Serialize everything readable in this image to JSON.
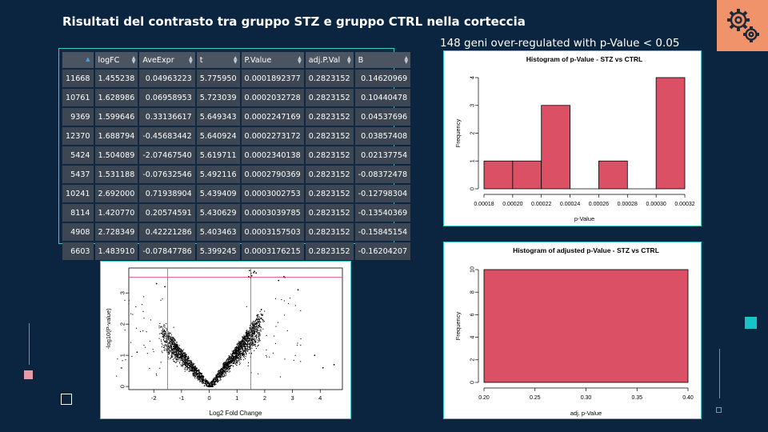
{
  "slide": {
    "title": "Risultati del contrasto tra gruppo STZ e gruppo CTRL nella corteccia",
    "subtitle": "148 geni over-regulated with p-Value < 0.05",
    "icon": "gears-icon",
    "accent_colors": {
      "background": "#0b2540",
      "teal": "#18c4c8",
      "pink": "#e89aa8",
      "orange": "#f0926a",
      "bar": "#dc5065"
    }
  },
  "table": {
    "columns": [
      "",
      "logFC",
      "AveExpr",
      "t",
      "P.Value",
      "adj.P.Val",
      "B"
    ],
    "rows": [
      [
        "11668",
        "1.455238",
        "0.04963223",
        "5.775950",
        "0.0001892377",
        "0.2823152",
        "0.14620969"
      ],
      [
        "10761",
        "1.628986",
        "0.06958953",
        "5.723039",
        "0.0002032728",
        "0.2823152",
        "0.10440478"
      ],
      [
        "9369",
        "1.599646",
        "0.33136617",
        "5.649343",
        "0.0002247169",
        "0.2823152",
        "0.04537696"
      ],
      [
        "12370",
        "1.688794",
        "-0.45683442",
        "5.640924",
        "0.0002273172",
        "0.2823152",
        "0.03857408"
      ],
      [
        "5424",
        "1.504089",
        "-2.07467540",
        "5.619711",
        "0.0002340138",
        "0.2823152",
        "0.02137754"
      ],
      [
        "5437",
        "1.531188",
        "-0.07632546",
        "5.492116",
        "0.0002790369",
        "0.2823152",
        "-0.08372478"
      ],
      [
        "10241",
        "2.692000",
        "0.71938904",
        "5.439409",
        "0.0003002753",
        "0.2823152",
        "-0.12798304"
      ],
      [
        "8114",
        "1.420770",
        "0.20574591",
        "5.430629",
        "0.0003039785",
        "0.2823152",
        "-0.13540369"
      ],
      [
        "4908",
        "2.728349",
        "0.42221286",
        "5.403463",
        "0.0003157503",
        "0.2823152",
        "-0.15845154"
      ],
      [
        "6603",
        "1.483910",
        "-0.07847786",
        "5.399245",
        "0.0003176215",
        "0.2823152",
        "-0.16204207"
      ]
    ]
  },
  "chart_data": [
    {
      "type": "scatter",
      "title": "",
      "xlabel": "Log2 Fold Change",
      "ylabel": "-log10(P-value)",
      "xlim": [
        -2.9,
        4.8
      ],
      "ylim": [
        -0.1,
        3.8
      ],
      "x_ticks": [
        "-2",
        "-1",
        "0",
        "1",
        "2",
        "3",
        "4"
      ],
      "y_ticks": [
        "0",
        "1",
        "2",
        "3"
      ],
      "reference_lines": {
        "vertical": [
          -1.5,
          1.5
        ],
        "horizontal": 3.5
      },
      "points": [
        [
          1.455,
          3.72
        ],
        [
          1.629,
          3.69
        ],
        [
          1.6,
          3.65
        ],
        [
          1.689,
          3.64
        ],
        [
          1.504,
          3.63
        ],
        [
          1.531,
          3.55
        ],
        [
          2.692,
          3.52
        ],
        [
          1.421,
          3.52
        ],
        [
          2.728,
          3.5
        ],
        [
          1.484,
          3.5
        ],
        [
          -1.9,
          3.3
        ],
        [
          2.5,
          3.4
        ],
        [
          3.2,
          3.1
        ],
        [
          -1.6,
          3.2
        ],
        [
          4.1,
          0.6
        ],
        [
          4.5,
          0.7
        ],
        [
          -2.6,
          1.1
        ],
        [
          3.8,
          1.0
        ]
      ]
    },
    {
      "type": "bar",
      "title": "Histogram of p-Value - STZ vs CTRL",
      "xlabel": "p-Value",
      "ylabel": "Frequency",
      "bins": [
        [
          0.00018,
          0.0002
        ],
        [
          0.0002,
          0.00022
        ],
        [
          0.00022,
          0.00024
        ],
        [
          0.00024,
          0.00026
        ],
        [
          0.00026,
          0.00028
        ],
        [
          0.00028,
          0.0003
        ],
        [
          0.0003,
          0.00032
        ]
      ],
      "values": [
        1,
        1,
        3,
        0,
        1,
        0,
        4
      ],
      "xlim": [
        0.00018,
        0.00032
      ],
      "ylim": [
        0,
        4
      ],
      "x_ticks": [
        "0.00018",
        "0.00020",
        "0.00022",
        "0.00024",
        "0.00026",
        "0.00028",
        "0.00030",
        "0.00032"
      ],
      "y_ticks": [
        "0",
        "1",
        "2",
        "3",
        "4"
      ]
    },
    {
      "type": "bar",
      "title": "Histogram of adjusted p-Value - STZ vs CTRL",
      "xlabel": "adj. p-Value",
      "ylabel": "Frequency",
      "bins": [
        [
          0.2,
          0.4
        ]
      ],
      "values": [
        10
      ],
      "xlim": [
        0.2,
        0.4
      ],
      "ylim": [
        0,
        10
      ],
      "x_ticks": [
        "0.20",
        "0.25",
        "0.30",
        "0.35",
        "0.40"
      ],
      "y_ticks": [
        "0",
        "2",
        "4",
        "6",
        "8",
        "10"
      ]
    }
  ]
}
